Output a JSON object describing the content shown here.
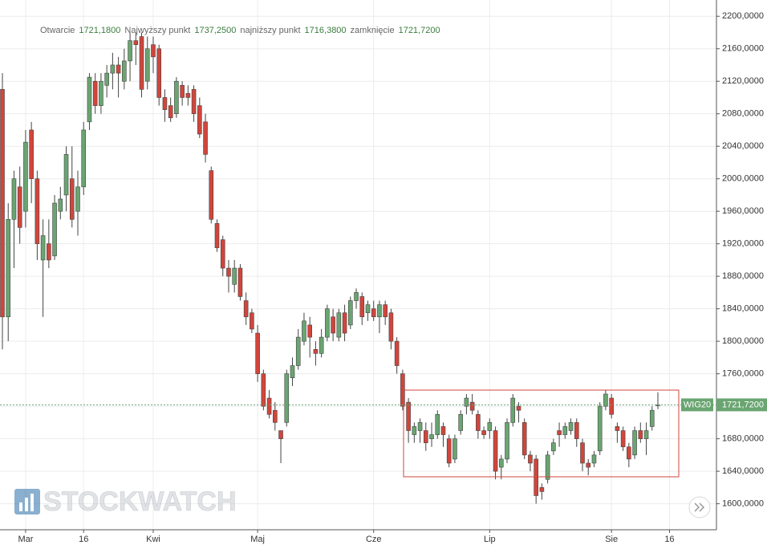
{
  "chart_data": {
    "type": "candlestick",
    "info": [
      {
        "label": "Otwarcie",
        "value": "1721,1800"
      },
      {
        "label": "Najwyższy punkt",
        "value": "1737,2500"
      },
      {
        "label": "najniższy punkt",
        "value": "1716,3800"
      },
      {
        "label": "zamknięcie",
        "value": "1721,7200"
      }
    ],
    "watermark": "STOCKWATCH",
    "categories": [
      null,
      null,
      null,
      null,
      "Mar",
      null,
      null,
      null,
      null,
      null,
      null,
      null,
      null,
      null,
      "16",
      null,
      null,
      null,
      null,
      null,
      null,
      null,
      null,
      null,
      null,
      null,
      "Kwi",
      null,
      null,
      null,
      null,
      null,
      null,
      null,
      null,
      null,
      null,
      null,
      null,
      null,
      null,
      null,
      null,
      null,
      "Maj",
      null,
      null,
      null,
      null,
      null,
      null,
      null,
      null,
      null,
      null,
      null,
      null,
      null,
      null,
      null,
      null,
      null,
      null,
      null,
      "Cze",
      null,
      null,
      null,
      null,
      null,
      null,
      null,
      null,
      null,
      null,
      null,
      null,
      null,
      null,
      null,
      null,
      null,
      null,
      null,
      "Lip",
      null,
      null,
      null,
      null,
      null,
      null,
      null,
      null,
      null,
      null,
      null,
      null,
      null,
      null,
      null,
      null,
      null,
      null,
      null,
      null,
      "Sie",
      null,
      null,
      null,
      null,
      null,
      null,
      null,
      null,
      null,
      "16"
    ],
    "open": [
      2110,
      1830,
      1950,
      1990,
      1960,
      2060,
      2000,
      1900,
      1920,
      1905,
      1960,
      1980,
      2000,
      1960,
      1990,
      2070,
      2120,
      2090,
      2115,
      2130,
      2140,
      2120,
      2145,
      2170,
      2175,
      2120,
      2165,
      2160,
      2100,
      2090,
      2080,
      2115,
      2105,
      2110,
      2090,
      2070,
      2010,
      1945,
      1925,
      1890,
      1870,
      1890,
      1850,
      1835,
      1810,
      1760,
      1730,
      1715,
      1690,
      1700,
      1755,
      1770,
      1800,
      1820,
      1790,
      1785,
      1805,
      1830,
      1805,
      1835,
      1820,
      1850,
      1855,
      1835,
      1840,
      1830,
      1845,
      1835,
      1800,
      1760,
      1725,
      1685,
      1690,
      1690,
      1680,
      1685,
      1695,
      1680,
      1655,
      1690,
      1720,
      1725,
      1710,
      1690,
      1690,
      1690,
      1645,
      1655,
      1700,
      1720,
      1700,
      1660,
      1655,
      1620,
      1630,
      1665,
      1690,
      1685,
      1690,
      1700,
      1675,
      1650,
      1650,
      1665,
      1720,
      1730,
      1695,
      1690,
      1670,
      1660,
      1690,
      1680,
      1695,
      1721.18,
      null,
      null
    ],
    "high": [
      2130,
      1970,
      2010,
      2015,
      2060,
      2070,
      2010,
      1950,
      1950,
      1980,
      1990,
      2040,
      2040,
      2010,
      2070,
      2130,
      2130,
      2130,
      2140,
      2155,
      2150,
      2160,
      2180,
      2180,
      2180,
      2175,
      2175,
      2165,
      2110,
      2100,
      2125,
      2120,
      2115,
      2115,
      2100,
      2080,
      2015,
      1950,
      1930,
      1900,
      1900,
      1895,
      1860,
      1840,
      1820,
      1765,
      1740,
      1725,
      1690,
      1765,
      1780,
      1815,
      1835,
      1830,
      1800,
      1815,
      1845,
      1840,
      1840,
      1845,
      1855,
      1865,
      1860,
      1850,
      1850,
      1850,
      1850,
      1840,
      1805,
      1765,
      1730,
      1700,
      1705,
      1700,
      1700,
      1715,
      1700,
      1685,
      1685,
      1715,
      1735,
      1735,
      1715,
      1695,
      1705,
      1695,
      1660,
      1705,
      1735,
      1725,
      1705,
      1665,
      1660,
      1625,
      1665,
      1680,
      1700,
      1700,
      1705,
      1705,
      1680,
      1655,
      1665,
      1725,
      1740,
      1735,
      1700,
      1695,
      1675,
      1695,
      1700,
      1700,
      1720,
      1737.25,
      null,
      null
    ],
    "low": [
      1790,
      1800,
      1890,
      1920,
      1940,
      1970,
      1900,
      1830,
      1890,
      1900,
      1950,
      1960,
      1940,
      1930,
      1980,
      2060,
      2080,
      2080,
      2100,
      2110,
      2100,
      2110,
      2120,
      2140,
      2100,
      2110,
      2130,
      2090,
      2070,
      2070,
      2075,
      2090,
      2090,
      2070,
      2050,
      2020,
      1945,
      1910,
      1880,
      1860,
      1860,
      1850,
      1820,
      1810,
      1750,
      1715,
      1705,
      1690,
      1650,
      1695,
      1745,
      1765,
      1795,
      1780,
      1770,
      1780,
      1800,
      1800,
      1800,
      1800,
      1815,
      1840,
      1820,
      1825,
      1825,
      1810,
      1820,
      1790,
      1760,
      1715,
      1675,
      1675,
      1675,
      1665,
      1670,
      1680,
      1670,
      1645,
      1650,
      1685,
      1710,
      1710,
      1680,
      1680,
      1680,
      1630,
      1630,
      1650,
      1695,
      1700,
      1655,
      1640,
      1600,
      1605,
      1625,
      1660,
      1670,
      1680,
      1685,
      1670,
      1640,
      1635,
      1645,
      1660,
      1715,
      1705,
      1675,
      1665,
      1645,
      1655,
      1675,
      1660,
      1690,
      1716.38,
      null,
      null
    ],
    "close": [
      1830,
      1950,
      2000,
      1940,
      2045,
      2000,
      1920,
      1930,
      1900,
      1970,
      1975,
      2030,
      1950,
      1990,
      2060,
      2125,
      2090,
      2120,
      2130,
      2140,
      2130,
      2145,
      2170,
      2165,
      2110,
      2160,
      2150,
      2100,
      2085,
      2075,
      2120,
      2100,
      2100,
      2080,
      2055,
      2030,
      1950,
      1915,
      1890,
      1880,
      1890,
      1855,
      1830,
      1815,
      1760,
      1720,
      1710,
      1700,
      1680,
      1760,
      1770,
      1805,
      1825,
      1805,
      1785,
      1805,
      1840,
      1810,
      1835,
      1810,
      1850,
      1860,
      1830,
      1845,
      1830,
      1845,
      1830,
      1800,
      1770,
      1720,
      1690,
      1695,
      1700,
      1675,
      1685,
      1710,
      1685,
      1650,
      1680,
      1710,
      1730,
      1715,
      1690,
      1685,
      1700,
      1640,
      1655,
      1700,
      1730,
      1715,
      1660,
      1650,
      1610,
      1615,
      1660,
      1675,
      1685,
      1695,
      1700,
      1680,
      1650,
      1645,
      1660,
      1720,
      1735,
      1710,
      1690,
      1670,
      1655,
      1690,
      1680,
      1690,
      1715,
      1721.72,
      null,
      null
    ],
    "up_color": "#6aa571",
    "down_color": "#d1453b",
    "price_tag": {
      "name": "WIG20",
      "label": "1721,7200",
      "value": 1721.72,
      "color": "#6aa571"
    },
    "ylim": [
      1568,
      2220
    ],
    "yticks": [
      {
        "value": 1600,
        "label": "1600,0000"
      },
      {
        "value": 1640,
        "label": "1640,0000"
      },
      {
        "value": 1680,
        "label": "1680,0000"
      },
      {
        "value": 1720,
        "label": "1720,0000"
      },
      {
        "value": 1760,
        "label": "1760,0000"
      },
      {
        "value": 1800,
        "label": "1800,0000"
      },
      {
        "value": 1840,
        "label": "1840,0000"
      },
      {
        "value": 1880,
        "label": "1880,0000"
      },
      {
        "value": 1920,
        "label": "1920,0000"
      },
      {
        "value": 1960,
        "label": "1960,0000"
      },
      {
        "value": 2000,
        "label": "2000,0000"
      },
      {
        "value": 2040,
        "label": "2040,0000"
      },
      {
        "value": 2080,
        "label": "2080,0000"
      },
      {
        "value": 2120,
        "label": "2120,0000"
      },
      {
        "value": 2160,
        "label": "2160,0000"
      },
      {
        "value": 2200,
        "label": "2200,0000"
      }
    ],
    "grid": true
  }
}
